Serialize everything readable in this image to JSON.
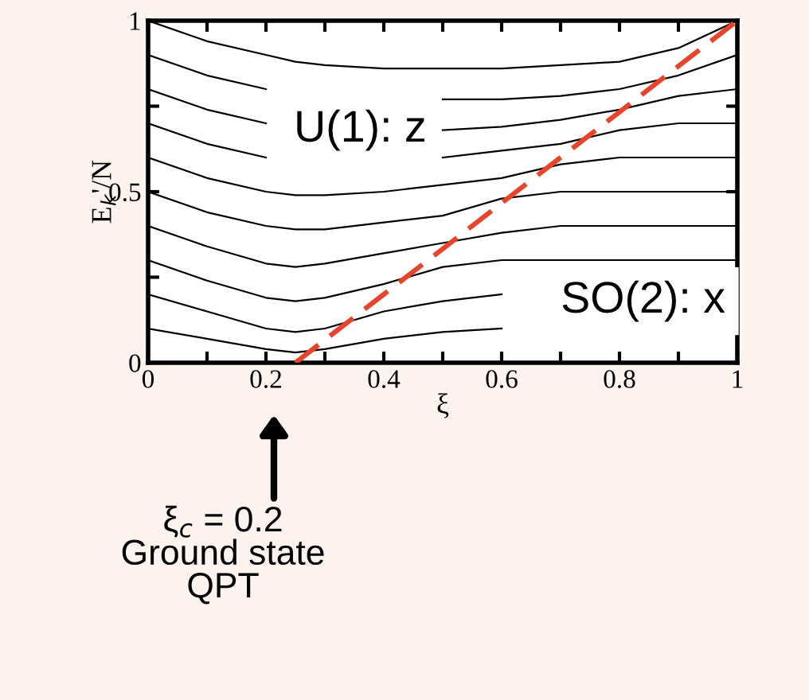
{
  "chart_data": {
    "type": "line",
    "xlabel": "ξ",
    "ylabel": "E$_{k}$'/N",
    "x": [
      0,
      0.1,
      0.2,
      0.25,
      0.3,
      0.4,
      0.5,
      0.6,
      0.7,
      0.8,
      0.9,
      1.0
    ],
    "series": [
      {
        "color": "#000000",
        "values": [
          0.1,
          0.07,
          0.04,
          0.03,
          0.04,
          0.07,
          0.09,
          0.1,
          null,
          null,
          null,
          null
        ]
      },
      {
        "color": "#000000",
        "values": [
          0.2,
          0.15,
          0.1,
          0.09,
          0.1,
          0.15,
          0.18,
          0.2,
          null,
          null,
          null,
          null
        ]
      },
      {
        "color": "#000000",
        "values": [
          0.3,
          0.24,
          0.19,
          0.18,
          0.19,
          0.23,
          0.28,
          0.3,
          0.3,
          0.3,
          0.3,
          0.3
        ]
      },
      {
        "color": "#000000",
        "values": [
          0.4,
          0.34,
          0.29,
          0.28,
          0.29,
          0.32,
          0.35,
          0.38,
          0.4,
          0.4,
          0.4,
          0.4
        ]
      },
      {
        "color": "#000000",
        "values": [
          0.5,
          0.44,
          0.4,
          0.39,
          0.39,
          0.41,
          0.43,
          0.48,
          0.5,
          0.5,
          0.5,
          0.5
        ]
      },
      {
        "color": "#000000",
        "values": [
          0.6,
          0.54,
          0.5,
          0.49,
          0.49,
          0.5,
          0.52,
          0.54,
          0.58,
          0.6,
          0.6,
          0.6
        ]
      },
      {
        "color": "#000000",
        "values": [
          0.7,
          0.64,
          0.6,
          null,
          null,
          null,
          0.6,
          0.62,
          0.64,
          0.68,
          0.7,
          0.7
        ]
      },
      {
        "color": "#000000",
        "values": [
          0.8,
          0.74,
          0.7,
          null,
          null,
          null,
          0.68,
          0.69,
          0.71,
          0.74,
          0.78,
          0.8
        ]
      },
      {
        "color": "#000000",
        "values": [
          0.9,
          0.84,
          0.8,
          null,
          null,
          null,
          0.77,
          0.77,
          0.78,
          0.8,
          0.84,
          0.9
        ]
      },
      {
        "color": "#000000",
        "values": [
          1.0,
          0.94,
          0.9,
          0.88,
          0.87,
          0.86,
          0.86,
          0.86,
          0.87,
          0.88,
          0.92,
          1.0
        ]
      },
      {
        "color": "#e8432b",
        "line_style": "dashed",
        "values": [
          null,
          null,
          null,
          0,
          0.067,
          0.2,
          0.333,
          0.467,
          0.6,
          0.733,
          0.867,
          1.0
        ]
      }
    ],
    "xlim": [
      0,
      1
    ],
    "ylim": [
      0,
      1
    ],
    "xticks": [
      0,
      {
        "value": 0.1,
        "label": null
      },
      0.2,
      {
        "value": 0.3,
        "label": null
      },
      0.4,
      {
        "value": 0.5,
        "label": null
      },
      0.6,
      {
        "value": 0.7,
        "label": null
      },
      0.8,
      {
        "value": 0.9,
        "label": null
      },
      1
    ],
    "yticks": [
      0,
      {
        "value": 0.25,
        "label": null
      },
      0.5,
      {
        "value": 0.75,
        "label": null
      },
      1
    ],
    "grid": false,
    "legend": false,
    "marker": "none",
    "line_style": "solid",
    "annotations": [
      "U(1): z",
      "SO(2): x",
      "ξ$_{c}$ = 0.2\nGround state\nQPT"
    ]
  }
}
